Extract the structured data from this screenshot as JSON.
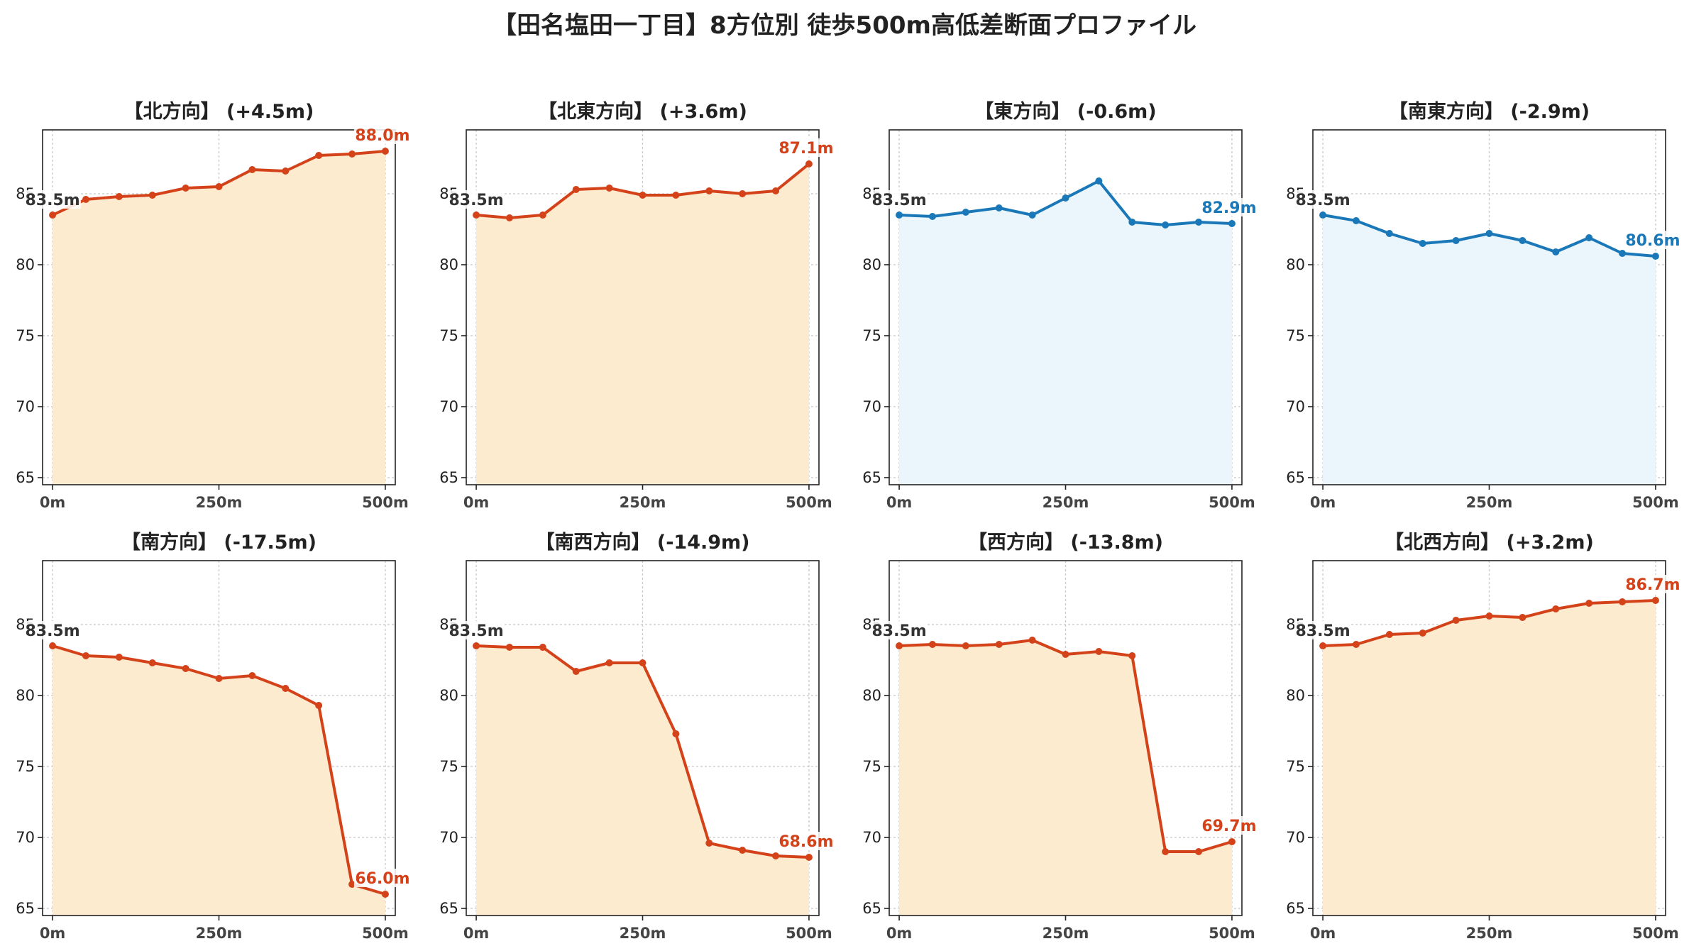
{
  "title": "【田名塩田一丁目】8方位別 徒歩500m高低差断面プロファイル",
  "colors": {
    "rise_line": "#d4421a",
    "rise_fill": "#fdebd0",
    "flat_line": "#1a78b8",
    "flat_fill": "#eaf6fc",
    "start_label": "#333333",
    "frame": "#222222",
    "grid": "#c8c8c8"
  },
  "chart_data": [
    {
      "type": "area",
      "title": "【北方向】 (+4.5m)",
      "x": [
        0,
        50,
        100,
        150,
        200,
        250,
        300,
        350,
        400,
        450,
        500
      ],
      "series": [
        {
          "values": [
            83.5,
            84.6,
            84.8,
            84.9,
            85.4,
            85.5,
            86.7,
            86.6,
            87.7,
            87.8,
            88.0
          ]
        }
      ],
      "start_label": "83.5m",
      "end_label": "88.0m",
      "color": "rise",
      "xticks": [
        "0m",
        "250m",
        "500m"
      ],
      "yticks": [
        65,
        70,
        75,
        80,
        85
      ],
      "ylim": [
        64.5,
        89.5
      ],
      "xlim": [
        -15,
        515
      ]
    },
    {
      "type": "area",
      "title": "【北東方向】 (+3.6m)",
      "x": [
        0,
        50,
        100,
        150,
        200,
        250,
        300,
        350,
        400,
        450,
        500
      ],
      "series": [
        {
          "values": [
            83.5,
            83.3,
            83.5,
            85.3,
            85.4,
            84.9,
            84.9,
            85.2,
            85.0,
            85.2,
            87.1
          ]
        }
      ],
      "start_label": "83.5m",
      "end_label": "87.1m",
      "color": "rise",
      "xticks": [
        "0m",
        "250m",
        "500m"
      ],
      "yticks": [
        65,
        70,
        75,
        80,
        85
      ],
      "ylim": [
        64.5,
        89.5
      ],
      "xlim": [
        -15,
        515
      ]
    },
    {
      "type": "area",
      "title": "【東方向】 (-0.6m)",
      "x": [
        0,
        50,
        100,
        150,
        200,
        250,
        300,
        350,
        400,
        450,
        500
      ],
      "series": [
        {
          "values": [
            83.5,
            83.4,
            83.7,
            84.0,
            83.5,
            84.7,
            85.9,
            83.0,
            82.8,
            83.0,
            82.9
          ]
        }
      ],
      "start_label": "83.5m",
      "end_label": "82.9m",
      "color": "flat",
      "xticks": [
        "0m",
        "250m",
        "500m"
      ],
      "yticks": [
        65,
        70,
        75,
        80,
        85
      ],
      "ylim": [
        64.5,
        89.5
      ],
      "xlim": [
        -15,
        515
      ]
    },
    {
      "type": "area",
      "title": "【南東方向】 (-2.9m)",
      "x": [
        0,
        50,
        100,
        150,
        200,
        250,
        300,
        350,
        400,
        450,
        500
      ],
      "series": [
        {
          "values": [
            83.5,
            83.1,
            82.2,
            81.5,
            81.7,
            82.2,
            81.7,
            80.9,
            81.9,
            80.8,
            80.6
          ]
        }
      ],
      "start_label": "83.5m",
      "end_label": "80.6m",
      "color": "flat",
      "xticks": [
        "0m",
        "250m",
        "500m"
      ],
      "yticks": [
        65,
        70,
        75,
        80,
        85
      ],
      "ylim": [
        64.5,
        89.5
      ],
      "xlim": [
        -15,
        515
      ]
    },
    {
      "type": "area",
      "title": "【南方向】 (-17.5m)",
      "x": [
        0,
        50,
        100,
        150,
        200,
        250,
        300,
        350,
        400,
        450,
        500
      ],
      "series": [
        {
          "values": [
            83.5,
            82.8,
            82.7,
            82.3,
            81.9,
            81.2,
            81.4,
            80.5,
            79.3,
            66.7,
            66.0
          ]
        }
      ],
      "start_label": "83.5m",
      "end_label": "66.0m",
      "color": "rise",
      "xticks": [
        "0m",
        "250m",
        "500m"
      ],
      "yticks": [
        65,
        70,
        75,
        80,
        85
      ],
      "ylim": [
        64.5,
        89.5
      ],
      "xlim": [
        -15,
        515
      ]
    },
    {
      "type": "area",
      "title": "【南西方向】 (-14.9m)",
      "x": [
        0,
        50,
        100,
        150,
        200,
        250,
        300,
        350,
        400,
        450,
        500
      ],
      "series": [
        {
          "values": [
            83.5,
            83.4,
            83.4,
            81.7,
            82.3,
            82.3,
            77.3,
            69.6,
            69.1,
            68.7,
            68.6
          ]
        }
      ],
      "start_label": "83.5m",
      "end_label": "68.6m",
      "color": "rise",
      "xticks": [
        "0m",
        "250m",
        "500m"
      ],
      "yticks": [
        65,
        70,
        75,
        80,
        85
      ],
      "ylim": [
        64.5,
        89.5
      ],
      "xlim": [
        -15,
        515
      ]
    },
    {
      "type": "area",
      "title": "【西方向】 (-13.8m)",
      "x": [
        0,
        50,
        100,
        150,
        200,
        250,
        300,
        350,
        400,
        450,
        500
      ],
      "series": [
        {
          "values": [
            83.5,
            83.6,
            83.5,
            83.6,
            83.9,
            82.9,
            83.1,
            82.8,
            69.0,
            69.0,
            69.7
          ]
        }
      ],
      "start_label": "83.5m",
      "end_label": "69.7m",
      "color": "rise",
      "xticks": [
        "0m",
        "250m",
        "500m"
      ],
      "yticks": [
        65,
        70,
        75,
        80,
        85
      ],
      "ylim": [
        64.5,
        89.5
      ],
      "xlim": [
        -15,
        515
      ]
    },
    {
      "type": "area",
      "title": "【北西方向】 (+3.2m)",
      "x": [
        0,
        50,
        100,
        150,
        200,
        250,
        300,
        350,
        400,
        450,
        500
      ],
      "series": [
        {
          "values": [
            83.5,
            83.6,
            84.3,
            84.4,
            85.3,
            85.6,
            85.5,
            86.1,
            86.5,
            86.6,
            86.7
          ]
        }
      ],
      "start_label": "83.5m",
      "end_label": "86.7m",
      "color": "rise",
      "xticks": [
        "0m",
        "250m",
        "500m"
      ],
      "yticks": [
        65,
        70,
        75,
        80,
        85
      ],
      "ylim": [
        64.5,
        89.5
      ],
      "xlim": [
        -15,
        515
      ]
    }
  ]
}
